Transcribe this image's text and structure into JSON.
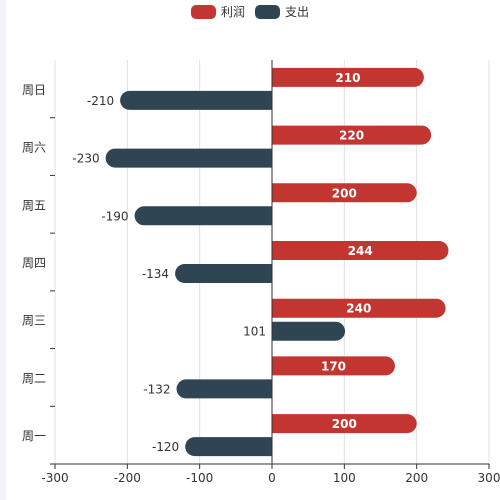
{
  "chart_data": {
    "type": "bar",
    "orientation": "horizontal",
    "categories": [
      "周一",
      "周二",
      "周三",
      "周四",
      "周五",
      "周六",
      "周日"
    ],
    "series": [
      {
        "name": "利润",
        "values": [
          200,
          170,
          240,
          244,
          200,
          220,
          210
        ],
        "color": "#c23531"
      },
      {
        "name": "支出",
        "values": [
          -120,
          -132,
          101,
          -134,
          -190,
          -230,
          -210
        ],
        "color": "#2f4554"
      }
    ],
    "xlim": [
      -300,
      300
    ],
    "x_ticks": [
      "-300",
      "-200",
      "-100",
      "0",
      "100",
      "200",
      "300"
    ],
    "grid": true,
    "legend_position": "top-center",
    "data_labels": true
  }
}
